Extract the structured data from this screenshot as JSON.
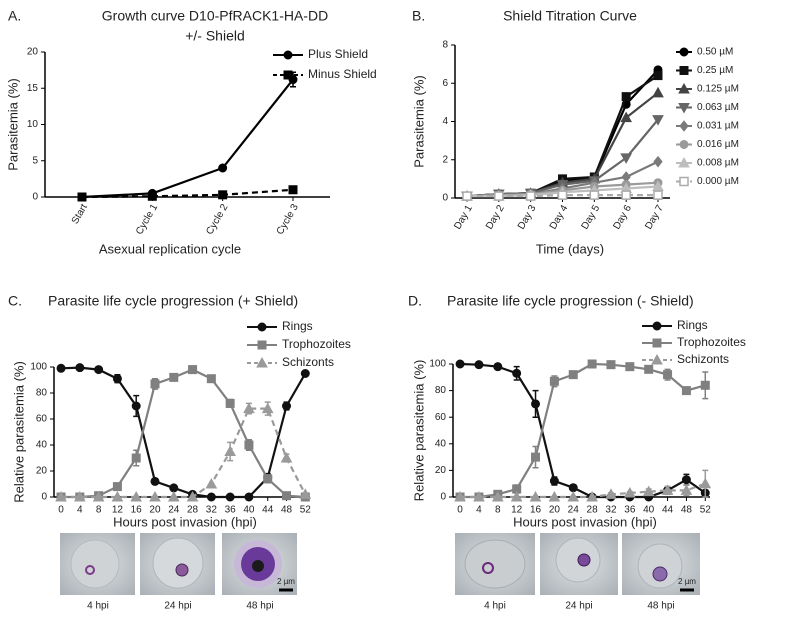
{
  "chart_data": [
    {
      "type": "line",
      "panel": "A.",
      "title": "Growth curve D10-PfRACK1-HA-DD",
      "subtitle": "+/- Shield",
      "x_label": "Asexual replication cycle",
      "y_label": "Parasitemia (%)",
      "categories": [
        "Start",
        "Cycle 1",
        "Cycle 2",
        "Cycle 3"
      ],
      "ylim": [
        0,
        20
      ],
      "yticks": [
        0,
        5,
        10,
        15,
        20
      ],
      "legend": "right",
      "series": [
        {
          "name": "Plus Shield",
          "color": "#000000",
          "marker": "circle",
          "dash": false,
          "values": [
            0,
            0.5,
            4,
            16.2
          ],
          "errors": [
            0.1,
            0.1,
            0.2,
            1
          ]
        },
        {
          "name": "Minus Shield",
          "color": "#000000",
          "marker": "square",
          "dash": true,
          "values": [
            0,
            0.1,
            0.3,
            1
          ],
          "errors": [
            0.1,
            0.05,
            0.1,
            0.2
          ]
        }
      ]
    },
    {
      "type": "line",
      "panel": "B.",
      "title": "Shield Titration Curve",
      "x_label": "Time (days)",
      "y_label": "Parasitemia (%)",
      "categories": [
        "Day 1",
        "Day 2",
        "Day 3",
        "Day 4",
        "Day 5",
        "Day 6",
        "Day 7"
      ],
      "ylim": [
        0,
        8
      ],
      "yticks": [
        0,
        2,
        4,
        6,
        8
      ],
      "legend": "right",
      "series": [
        {
          "name": "0.50 µM",
          "color": "#000000",
          "marker": "circle",
          "dash": false,
          "values": [
            0.1,
            0.2,
            0.25,
            0.9,
            1.05,
            4.9,
            6.7
          ]
        },
        {
          "name": "0.25 µM",
          "color": "#111111",
          "marker": "square",
          "dash": false,
          "values": [
            0.1,
            0.2,
            0.25,
            1,
            1.1,
            5.3,
            6.4
          ]
        },
        {
          "name": "0.125 µM",
          "color": "#444444",
          "marker": "triangle",
          "dash": false,
          "values": [
            0.1,
            0.2,
            0.25,
            0.8,
            1,
            4.2,
            5.5
          ]
        },
        {
          "name": "0.063 µM",
          "color": "#666666",
          "marker": "triangle-down",
          "dash": false,
          "values": [
            0.1,
            0.2,
            0.25,
            0.7,
            0.9,
            2.1,
            4.1
          ]
        },
        {
          "name": "0.031 µM",
          "color": "#7a7a7a",
          "marker": "diamond",
          "dash": false,
          "values": [
            0.1,
            0.15,
            0.2,
            0.5,
            0.8,
            1.1,
            1.9
          ]
        },
        {
          "name": "0.016 µM",
          "color": "#9a9a9a",
          "marker": "circle",
          "dash": false,
          "values": [
            0.1,
            0.15,
            0.2,
            0.4,
            0.6,
            0.7,
            0.8
          ]
        },
        {
          "name": "0.008 µM",
          "color": "#bdbdbd",
          "marker": "triangle",
          "dash": false,
          "values": [
            0.1,
            0.1,
            0.15,
            0.3,
            0.4,
            0.5,
            0.6
          ]
        },
        {
          "name": "0.000 µM",
          "color": "#aaaaaa",
          "marker": "square-open",
          "dash": true,
          "values": [
            0.1,
            0.1,
            0.1,
            0.15,
            0.15,
            0.15,
            0.15
          ]
        }
      ]
    },
    {
      "type": "line",
      "panel": "C.",
      "title": "Parasite life cycle progression (+ Shield)",
      "x_label": "Hours post invasion (hpi)",
      "y_label": "Relative parasitemia (%)",
      "x": [
        0,
        4,
        8,
        12,
        16,
        20,
        24,
        28,
        32,
        36,
        40,
        44,
        48,
        52
      ],
      "xlim": [
        -1.5,
        53
      ],
      "xticks": [
        0,
        4,
        8,
        12,
        16,
        20,
        24,
        28,
        32,
        36,
        40,
        44,
        48,
        52
      ],
      "ylim": [
        0,
        100
      ],
      "yticks": [
        0,
        20,
        40,
        60,
        80,
        100
      ],
      "legend": "top-right",
      "series": [
        {
          "name": "Rings",
          "color": "#111111",
          "marker": "circle",
          "dash": false,
          "values": [
            99,
            99.5,
            98,
            91,
            70,
            12,
            7,
            2,
            0,
            0,
            0,
            15,
            70,
            95
          ],
          "errors": [
            1,
            1,
            1,
            3,
            8,
            2,
            2,
            1,
            0,
            0,
            0,
            3,
            3,
            1
          ]
        },
        {
          "name": "Trophozoites",
          "color": "#808080",
          "marker": "square",
          "dash": false,
          "values": [
            0,
            0,
            1,
            8,
            30,
            87,
            92,
            98,
            91,
            72,
            40,
            14,
            1,
            0
          ],
          "errors": [
            0,
            0,
            0,
            2,
            6,
            4,
            2,
            1,
            2,
            3,
            4,
            3,
            0,
            0
          ]
        },
        {
          "name": "Schizonts",
          "color": "#9a9a9a",
          "marker": "triangle",
          "dash": true,
          "values": [
            0,
            0,
            0,
            0,
            0,
            0,
            0,
            0,
            10,
            35,
            68,
            68,
            30,
            2
          ],
          "errors": [
            0,
            0,
            0,
            0,
            0,
            0,
            0,
            0,
            0,
            7,
            4,
            5,
            3,
            0
          ]
        }
      ],
      "micrographs": [
        "4 hpi",
        "24 hpi",
        "48 hpi"
      ],
      "scale_bar": "2 µm"
    },
    {
      "type": "line",
      "panel": "D.",
      "title": "Parasite life cycle progression (- Shield)",
      "x_label": "Hours post invasion (hpi)",
      "y_label": "Relative parasitemia (%)",
      "x": [
        0,
        4,
        8,
        12,
        16,
        20,
        24,
        28,
        32,
        36,
        40,
        44,
        48,
        52
      ],
      "xlim": [
        -1.5,
        53
      ],
      "xticks": [
        0,
        4,
        8,
        12,
        16,
        20,
        24,
        28,
        32,
        36,
        40,
        44,
        48,
        52
      ],
      "ylim": [
        0,
        100
      ],
      "yticks": [
        0,
        20,
        40,
        60,
        80,
        100
      ],
      "legend": "top-right",
      "series": [
        {
          "name": "Rings",
          "color": "#111111",
          "marker": "circle",
          "dash": false,
          "values": [
            100,
            99.5,
            98,
            93,
            70,
            12,
            7,
            0,
            0,
            0,
            0,
            5,
            13,
            3
          ],
          "errors": [
            1,
            1,
            2,
            5,
            10,
            3,
            2,
            0,
            0,
            0,
            0,
            2,
            4,
            2
          ]
        },
        {
          "name": "Trophozoites",
          "color": "#808080",
          "marker": "square",
          "dash": false,
          "values": [
            0,
            0,
            2,
            6,
            30,
            87,
            92,
            100,
            99.5,
            98,
            96,
            92,
            80,
            84
          ],
          "errors": [
            0,
            0,
            1,
            3,
            8,
            4,
            2,
            1,
            1,
            2,
            2,
            4,
            2,
            10
          ]
        },
        {
          "name": "Schizonts",
          "color": "#9a9a9a",
          "marker": "triangle",
          "dash": true,
          "values": [
            0,
            0,
            0,
            0,
            0,
            0,
            0,
            0,
            2,
            3,
            4,
            5,
            5,
            10
          ],
          "errors": [
            0,
            0,
            0,
            0,
            0,
            0,
            0,
            0,
            1,
            1,
            2,
            3,
            4,
            10
          ]
        }
      ],
      "micrographs": [
        "4 hpi",
        "24 hpi",
        "48 hpi"
      ],
      "scale_bar": "2 µm"
    }
  ]
}
